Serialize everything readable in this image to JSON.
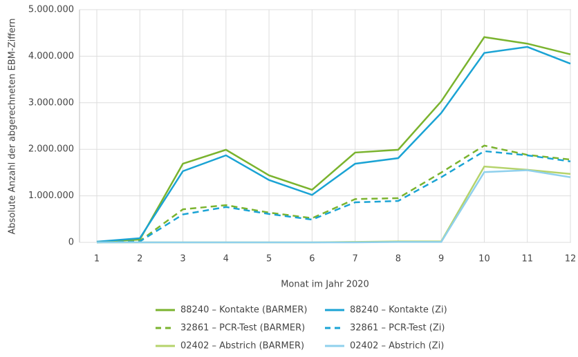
{
  "chart_data": {
    "type": "line",
    "y_label": "Absolute Anzahl der abgerechneten EBM-Ziffern",
    "x_label": "Monat im Jahr 2020",
    "categories": [
      "1",
      "2",
      "3",
      "4",
      "5",
      "6",
      "7",
      "8",
      "9",
      "10",
      "11",
      "12"
    ],
    "ylim": [
      0,
      5000000
    ],
    "yticks": [
      0,
      {
        "value": 1000000,
        "label": "1.000.000"
      },
      {
        "value": 2000000,
        "label": "2.000.000"
      },
      {
        "value": 3000000,
        "label": "3.000.000"
      },
      {
        "value": 4000000,
        "label": "4.000.000"
      },
      {
        "value": 5000000,
        "label": "5.000.000"
      }
    ],
    "grid": true,
    "series": [
      {
        "name": "88240 – Kontakte (BARMER)",
        "color": "#7ab32e",
        "dashed": false,
        "values": [
          10000,
          60000,
          1690000,
          1990000,
          1440000,
          1130000,
          1930000,
          1990000,
          3030000,
          4410000,
          4270000,
          4040000
        ]
      },
      {
        "name": "88240 – Kontakte (Zi)",
        "color": "#1aa3d4",
        "dashed": false,
        "values": [
          15000,
          90000,
          1530000,
          1870000,
          1340000,
          1020000,
          1690000,
          1810000,
          2780000,
          4070000,
          4200000,
          3840000
        ]
      },
      {
        "name": "32861 – PCR-Test (BARMER)",
        "color": "#7ab32e",
        "dashed": true,
        "values": [
          0,
          30000,
          710000,
          800000,
          640000,
          520000,
          930000,
          950000,
          1500000,
          2080000,
          1880000,
          1780000
        ]
      },
      {
        "name": "32861 – PCR-Test (Zi)",
        "color": "#1aa3d4",
        "dashed": true,
        "values": [
          0,
          20000,
          600000,
          760000,
          610000,
          490000,
          860000,
          890000,
          1400000,
          1960000,
          1870000,
          1740000
        ]
      },
      {
        "name": "02402 – Abstrich (BARMER)",
        "color": "#b5d36b",
        "dashed": false,
        "values": [
          0,
          0,
          0,
          0,
          0,
          0,
          10000,
          20000,
          20000,
          1630000,
          1560000,
          1470000
        ]
      },
      {
        "name": "02402 – Abstrich (Zi)",
        "color": "#8fd0ec",
        "dashed": false,
        "values": [
          0,
          0,
          0,
          0,
          0,
          0,
          0,
          10000,
          10000,
          1510000,
          1550000,
          1400000
        ]
      }
    ]
  }
}
